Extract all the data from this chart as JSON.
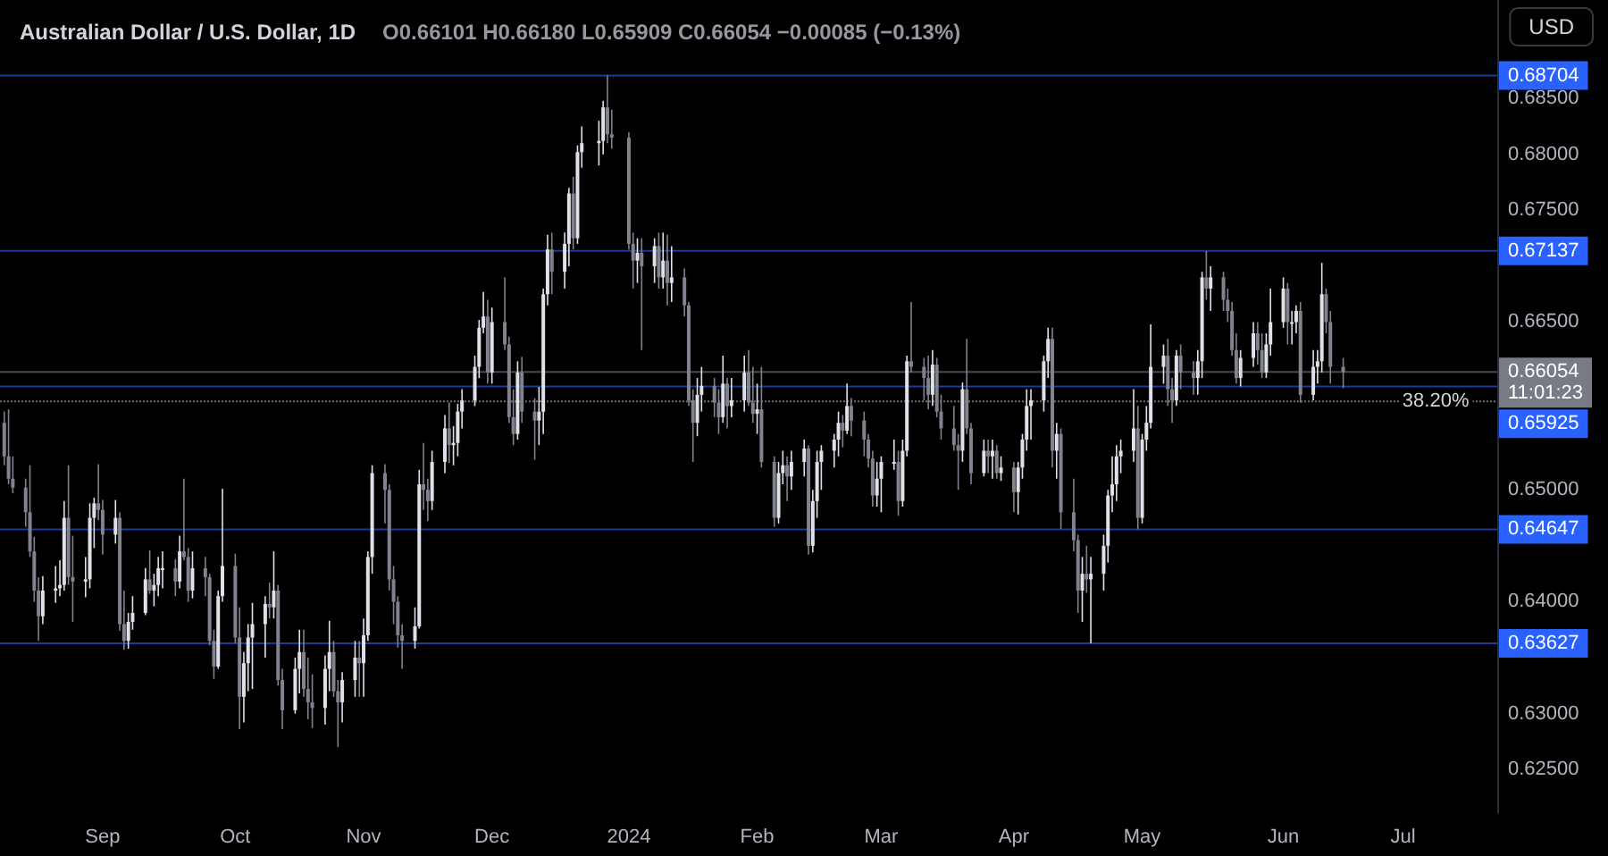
{
  "chart_data": {
    "type": "candlestick",
    "title": "Australian Dollar / U.S. Dollar, 1D",
    "subtitle": "O0.66101 H0.66180 L0.65909 C0.66054 −0.00085 (−0.13%)",
    "annotations": [
      "USD",
      {
        "text": "38.20%",
        "x": "2024-06-30",
        "y": 0.6579
      }
    ],
    "x": [
      "2023-08-09",
      "2023-08-10",
      "2023-08-11",
      "2023-08-14",
      "2023-08-15",
      "2023-08-16",
      "2023-08-17",
      "2023-08-18",
      "2023-08-21",
      "2023-08-22",
      "2023-08-23",
      "2023-08-24",
      "2023-08-25",
      "2023-08-28",
      "2023-08-29",
      "2023-08-30",
      "2023-08-31",
      "2023-09-01",
      "2023-09-04",
      "2023-09-05",
      "2023-09-06",
      "2023-09-07",
      "2023-09-08",
      "2023-09-11",
      "2023-09-12",
      "2023-09-13",
      "2023-09-14",
      "2023-09-15",
      "2023-09-18",
      "2023-09-19",
      "2023-09-20",
      "2023-09-21",
      "2023-09-22",
      "2023-09-25",
      "2023-09-26",
      "2023-09-27",
      "2023-09-28",
      "2023-09-29",
      "2023-10-02",
      "2023-10-03",
      "2023-10-04",
      "2023-10-05",
      "2023-10-06",
      "2023-10-09",
      "2023-10-10",
      "2023-10-11",
      "2023-10-12",
      "2023-10-13",
      "2023-10-16",
      "2023-10-17",
      "2023-10-18",
      "2023-10-19",
      "2023-10-20",
      "2023-10-23",
      "2023-10-24",
      "2023-10-25",
      "2023-10-26",
      "2023-10-27",
      "2023-10-30",
      "2023-10-31",
      "2023-11-01",
      "2023-11-02",
      "2023-11-03",
      "2023-11-06",
      "2023-11-07",
      "2023-11-08",
      "2023-11-09",
      "2023-11-10",
      "2023-11-13",
      "2023-11-14",
      "2023-11-15",
      "2023-11-16",
      "2023-11-17",
      "2023-11-20",
      "2023-11-21",
      "2023-11-22",
      "2023-11-23",
      "2023-11-24",
      "2023-11-27",
      "2023-11-28",
      "2023-11-29",
      "2023-11-30",
      "2023-12-01",
      "2023-12-04",
      "2023-12-05",
      "2023-12-06",
      "2023-12-07",
      "2023-12-08",
      "2023-12-11",
      "2023-12-12",
      "2023-12-13",
      "2023-12-14",
      "2023-12-15",
      "2023-12-18",
      "2023-12-19",
      "2023-12-20",
      "2023-12-21",
      "2023-12-22",
      "2023-12-26",
      "2023-12-27",
      "2023-12-28",
      "2023-12-29",
      "2024-01-02",
      "2024-01-03",
      "2024-01-04",
      "2024-01-05",
      "2024-01-08",
      "2024-01-09",
      "2024-01-10",
      "2024-01-11",
      "2024-01-12",
      "2024-01-15",
      "2024-01-16",
      "2024-01-17",
      "2024-01-18",
      "2024-01-19",
      "2024-01-22",
      "2024-01-23",
      "2024-01-24",
      "2024-01-25",
      "2024-01-26",
      "2024-01-29",
      "2024-01-30",
      "2024-01-31",
      "2024-02-01",
      "2024-02-02",
      "2024-02-05",
      "2024-02-06",
      "2024-02-07",
      "2024-02-08",
      "2024-02-09",
      "2024-02-12",
      "2024-02-13",
      "2024-02-14",
      "2024-02-15",
      "2024-02-16",
      "2024-02-19",
      "2024-02-20",
      "2024-02-21",
      "2024-02-22",
      "2024-02-23",
      "2024-02-26",
      "2024-02-27",
      "2024-02-28",
      "2024-02-29",
      "2024-03-01",
      "2024-03-04",
      "2024-03-05",
      "2024-03-06",
      "2024-03-07",
      "2024-03-08",
      "2024-03-11",
      "2024-03-12",
      "2024-03-13",
      "2024-03-14",
      "2024-03-15",
      "2024-03-18",
      "2024-03-19",
      "2024-03-20",
      "2024-03-21",
      "2024-03-22",
      "2024-03-25",
      "2024-03-26",
      "2024-03-27",
      "2024-03-28",
      "2024-03-29",
      "2024-04-01",
      "2024-04-02",
      "2024-04-03",
      "2024-04-04",
      "2024-04-05",
      "2024-04-08",
      "2024-04-09",
      "2024-04-10",
      "2024-04-11",
      "2024-04-12",
      "2024-04-15",
      "2024-04-16",
      "2024-04-17",
      "2024-04-18",
      "2024-04-19",
      "2024-04-22",
      "2024-04-23",
      "2024-04-24",
      "2024-04-25",
      "2024-04-26",
      "2024-04-29",
      "2024-04-30",
      "2024-05-01",
      "2024-05-02",
      "2024-05-03",
      "2024-05-06",
      "2024-05-07",
      "2024-05-08",
      "2024-05-09",
      "2024-05-10",
      "2024-05-13",
      "2024-05-14",
      "2024-05-15",
      "2024-05-16",
      "2024-05-17",
      "2024-05-20",
      "2024-05-21",
      "2024-05-22",
      "2024-05-23",
      "2024-05-24",
      "2024-05-27",
      "2024-05-28",
      "2024-05-29",
      "2024-05-30",
      "2024-05-31",
      "2024-06-03",
      "2024-06-04",
      "2024-06-05",
      "2024-06-06",
      "2024-06-07",
      "2024-06-10",
      "2024-06-11",
      "2024-06-12",
      "2024-06-13",
      "2024-06-14",
      "2024-06-17"
    ],
    "ohlc": [
      [
        0.656,
        0.657,
        0.6522,
        0.653
      ],
      [
        0.653,
        0.6572,
        0.6505,
        0.651
      ],
      [
        0.651,
        0.653,
        0.6497,
        0.6502
      ],
      [
        0.6502,
        0.651,
        0.6467,
        0.648
      ],
      [
        0.648,
        0.6522,
        0.644,
        0.6445
      ],
      [
        0.6445,
        0.6458,
        0.64,
        0.641
      ],
      [
        0.641,
        0.6422,
        0.6365,
        0.6387
      ],
      [
        0.6387,
        0.6423,
        0.638,
        0.641
      ],
      [
        0.641,
        0.6432,
        0.6399,
        0.6412
      ],
      [
        0.6412,
        0.6437,
        0.6405,
        0.6415
      ],
      [
        0.6415,
        0.649,
        0.641,
        0.6475
      ],
      [
        0.6475,
        0.6522,
        0.6415,
        0.6422
      ],
      [
        0.6422,
        0.6459,
        0.6382,
        0.6418
      ],
      [
        0.6418,
        0.644,
        0.6404,
        0.642
      ],
      [
        0.642,
        0.6488,
        0.6412,
        0.6475
      ],
      [
        0.6475,
        0.6493,
        0.6448,
        0.6488
      ],
      [
        0.6488,
        0.6523,
        0.6473,
        0.6482
      ],
      [
        0.6482,
        0.6491,
        0.6442,
        0.646
      ],
      [
        0.646,
        0.6491,
        0.6452,
        0.6475
      ],
      [
        0.6475,
        0.648,
        0.6374,
        0.638
      ],
      [
        0.638,
        0.641,
        0.6357,
        0.6365
      ],
      [
        0.6365,
        0.639,
        0.6358,
        0.6382
      ],
      [
        0.6382,
        0.6405,
        0.6375,
        0.639
      ],
      [
        0.639,
        0.643,
        0.6388,
        0.642
      ],
      [
        0.642,
        0.6446,
        0.6407,
        0.641
      ],
      [
        0.641,
        0.6425,
        0.6396,
        0.6415
      ],
      [
        0.6415,
        0.644,
        0.6405,
        0.643
      ],
      [
        0.643,
        0.6445,
        0.6412,
        0.643
      ],
      [
        0.643,
        0.6438,
        0.6405,
        0.6418
      ],
      [
        0.6418,
        0.6459,
        0.6412,
        0.6445
      ],
      [
        0.6445,
        0.651,
        0.6437,
        0.644
      ],
      [
        0.644,
        0.6448,
        0.64,
        0.641
      ],
      [
        0.641,
        0.6445,
        0.6403,
        0.643
      ],
      [
        0.643,
        0.644,
        0.6405,
        0.6422
      ],
      [
        0.6422,
        0.6425,
        0.6361,
        0.6365
      ],
      [
        0.6365,
        0.6375,
        0.6331,
        0.6342
      ],
      [
        0.6342,
        0.641,
        0.634,
        0.6405
      ],
      [
        0.6405,
        0.6501,
        0.64,
        0.6432
      ],
      [
        0.6432,
        0.6443,
        0.6363,
        0.6368
      ],
      [
        0.6368,
        0.6395,
        0.6286,
        0.6315
      ],
      [
        0.6315,
        0.6355,
        0.6292,
        0.6345
      ],
      [
        0.6345,
        0.638,
        0.632,
        0.6368
      ],
      [
        0.6368,
        0.6399,
        0.6322,
        0.638
      ],
      [
        0.638,
        0.6405,
        0.635,
        0.6398
      ],
      [
        0.6398,
        0.6417,
        0.6385,
        0.6395
      ],
      [
        0.6395,
        0.6445,
        0.6385,
        0.641
      ],
      [
        0.641,
        0.6415,
        0.6325,
        0.633
      ],
      [
        0.633,
        0.634,
        0.6286,
        0.6303
      ],
      [
        0.6303,
        0.635,
        0.63,
        0.634
      ],
      [
        0.634,
        0.6375,
        0.6318,
        0.6355
      ],
      [
        0.6355,
        0.6375,
        0.6315,
        0.6322
      ],
      [
        0.6322,
        0.635,
        0.6295,
        0.631
      ],
      [
        0.631,
        0.6335,
        0.6287,
        0.6305
      ],
      [
        0.6305,
        0.6352,
        0.629,
        0.634
      ],
      [
        0.634,
        0.6383,
        0.632,
        0.6355
      ],
      [
        0.6355,
        0.6365,
        0.6315,
        0.632
      ],
      [
        0.632,
        0.633,
        0.627,
        0.631
      ],
      [
        0.631,
        0.6337,
        0.6292,
        0.633
      ],
      [
        0.633,
        0.6365,
        0.6315,
        0.635
      ],
      [
        0.635,
        0.6365,
        0.6315,
        0.6345
      ],
      [
        0.6345,
        0.6385,
        0.6315,
        0.637
      ],
      [
        0.637,
        0.6445,
        0.6365,
        0.644
      ],
      [
        0.644,
        0.6522,
        0.6425,
        0.6515
      ],
      [
        0.6515,
        0.6523,
        0.647,
        0.65
      ],
      [
        0.65,
        0.6505,
        0.641,
        0.642
      ],
      [
        0.642,
        0.6432,
        0.638,
        0.64
      ],
      [
        0.64,
        0.6405,
        0.6359,
        0.637
      ],
      [
        0.637,
        0.638,
        0.634,
        0.6365
      ],
      [
        0.6365,
        0.6395,
        0.6358,
        0.6378
      ],
      [
        0.6378,
        0.6518,
        0.6376,
        0.6505
      ],
      [
        0.6505,
        0.6542,
        0.6482,
        0.65
      ],
      [
        0.65,
        0.651,
        0.6472,
        0.649
      ],
      [
        0.649,
        0.6535,
        0.6482,
        0.6525
      ],
      [
        0.6525,
        0.6567,
        0.6515,
        0.6555
      ],
      [
        0.6555,
        0.6578,
        0.6524,
        0.654
      ],
      [
        0.654,
        0.6557,
        0.6522,
        0.6542
      ],
      [
        0.6542,
        0.6577,
        0.653,
        0.657
      ],
      [
        0.657,
        0.659,
        0.6555,
        0.658
      ],
      [
        0.658,
        0.662,
        0.6575,
        0.661
      ],
      [
        0.661,
        0.6652,
        0.66,
        0.6645
      ],
      [
        0.6645,
        0.6677,
        0.664,
        0.6655
      ],
      [
        0.6655,
        0.667,
        0.6595,
        0.6605
      ],
      [
        0.6605,
        0.6663,
        0.6595,
        0.665
      ],
      [
        0.665,
        0.669,
        0.6625,
        0.663
      ],
      [
        0.663,
        0.6637,
        0.656,
        0.6565
      ],
      [
        0.6565,
        0.659,
        0.654,
        0.655
      ],
      [
        0.655,
        0.6615,
        0.6545,
        0.6605
      ],
      [
        0.6605,
        0.6619,
        0.656,
        0.657
      ],
      [
        0.657,
        0.6582,
        0.6527,
        0.6562
      ],
      [
        0.6562,
        0.6592,
        0.654,
        0.657
      ],
      [
        0.657,
        0.668,
        0.655,
        0.6675
      ],
      [
        0.6675,
        0.6728,
        0.6665,
        0.6715
      ],
      [
        0.6715,
        0.673,
        0.6675,
        0.6695
      ],
      [
        0.6695,
        0.673,
        0.668,
        0.672
      ],
      [
        0.672,
        0.677,
        0.67,
        0.6765
      ],
      [
        0.6765,
        0.678,
        0.6715,
        0.6725
      ],
      [
        0.6725,
        0.6808,
        0.672,
        0.6802
      ],
      [
        0.6802,
        0.6825,
        0.6788,
        0.681
      ],
      [
        0.681,
        0.683,
        0.679,
        0.6812
      ],
      [
        0.6812,
        0.6848,
        0.68,
        0.6842
      ],
      [
        0.6842,
        0.68704,
        0.681,
        0.6818
      ],
      [
        0.6818,
        0.684,
        0.6805,
        0.6815
      ],
      [
        0.6815,
        0.682,
        0.6715,
        0.672
      ],
      [
        0.672,
        0.673,
        0.668,
        0.6705
      ],
      [
        0.6705,
        0.6725,
        0.6685,
        0.6712
      ],
      [
        0.6712,
        0.6725,
        0.6625,
        0.67
      ],
      [
        0.67,
        0.6725,
        0.6685,
        0.6718
      ],
      [
        0.6718,
        0.673,
        0.668,
        0.669
      ],
      [
        0.669,
        0.673,
        0.668,
        0.6705
      ],
      [
        0.6705,
        0.6728,
        0.6665,
        0.6685
      ],
      [
        0.6685,
        0.6718,
        0.6668,
        0.669
      ],
      [
        0.669,
        0.6698,
        0.6655,
        0.6665
      ],
      [
        0.6665,
        0.6668,
        0.6575,
        0.658
      ],
      [
        0.658,
        0.659,
        0.6525,
        0.656
      ],
      [
        0.656,
        0.66,
        0.6548,
        0.6585
      ],
      [
        0.6585,
        0.661,
        0.657,
        0.6593
      ],
      [
        0.6593,
        0.66,
        0.6565,
        0.6578
      ],
      [
        0.6578,
        0.659,
        0.655,
        0.6565
      ],
      [
        0.6565,
        0.662,
        0.656,
        0.6595
      ],
      [
        0.6595,
        0.66,
        0.6555,
        0.6575
      ],
      [
        0.6575,
        0.66,
        0.6565,
        0.658
      ],
      [
        0.658,
        0.662,
        0.657,
        0.6605
      ],
      [
        0.6605,
        0.6625,
        0.6575,
        0.6578
      ],
      [
        0.6578,
        0.661,
        0.656,
        0.6568
      ],
      [
        0.6568,
        0.6595,
        0.655,
        0.6572
      ],
      [
        0.6572,
        0.661,
        0.652,
        0.6525
      ],
      [
        0.6525,
        0.653,
        0.6467,
        0.6475
      ],
      [
        0.6475,
        0.6525,
        0.647,
        0.6515
      ],
      [
        0.6515,
        0.6535,
        0.6505,
        0.6522
      ],
      [
        0.6522,
        0.653,
        0.649,
        0.6512
      ],
      [
        0.6512,
        0.6535,
        0.65,
        0.6525
      ],
      [
        0.6525,
        0.6545,
        0.6512,
        0.6537
      ],
      [
        0.6537,
        0.654,
        0.6442,
        0.645
      ],
      [
        0.645,
        0.65,
        0.6444,
        0.649
      ],
      [
        0.649,
        0.6535,
        0.6475,
        0.6525
      ],
      [
        0.6525,
        0.654,
        0.65,
        0.6535
      ],
      [
        0.6535,
        0.655,
        0.652,
        0.6545
      ],
      [
        0.6545,
        0.657,
        0.653,
        0.656
      ],
      [
        0.656,
        0.6567,
        0.6538,
        0.6553
      ],
      [
        0.6553,
        0.6595,
        0.655,
        0.6575
      ],
      [
        0.6575,
        0.6582,
        0.6548,
        0.6562
      ],
      [
        0.6562,
        0.657,
        0.653,
        0.6545
      ],
      [
        0.6545,
        0.655,
        0.652,
        0.6528
      ],
      [
        0.6528,
        0.6535,
        0.6485,
        0.6495
      ],
      [
        0.6495,
        0.6525,
        0.6485,
        0.651
      ],
      [
        0.651,
        0.653,
        0.648,
        0.6525
      ],
      [
        0.6525,
        0.6545,
        0.6518,
        0.6525
      ],
      [
        0.6525,
        0.6535,
        0.6477,
        0.649
      ],
      [
        0.649,
        0.6545,
        0.6485,
        0.6535
      ],
      [
        0.6535,
        0.662,
        0.653,
        0.6615
      ],
      [
        0.6615,
        0.6668,
        0.6605,
        0.661
      ],
      [
        0.661,
        0.6618,
        0.658,
        0.66
      ],
      [
        0.66,
        0.662,
        0.6572,
        0.6585
      ],
      [
        0.6585,
        0.6625,
        0.6575,
        0.6612
      ],
      [
        0.6612,
        0.6618,
        0.6565,
        0.657
      ],
      [
        0.657,
        0.6585,
        0.6545,
        0.6555
      ],
      [
        0.6555,
        0.6575,
        0.6535,
        0.654
      ],
      [
        0.654,
        0.655,
        0.65,
        0.6535
      ],
      [
        0.6535,
        0.6596,
        0.6525,
        0.659
      ],
      [
        0.659,
        0.6635,
        0.655,
        0.6555
      ],
      [
        0.6555,
        0.656,
        0.6505,
        0.6515
      ],
      [
        0.6515,
        0.6545,
        0.6512,
        0.6535
      ],
      [
        0.6535,
        0.6545,
        0.6515,
        0.653
      ],
      [
        0.653,
        0.6545,
        0.651,
        0.6535
      ],
      [
        0.6535,
        0.654,
        0.651,
        0.6515
      ],
      [
        0.6515,
        0.653,
        0.6508,
        0.652
      ],
      [
        0.652,
        0.6525,
        0.648,
        0.6498
      ],
      [
        0.6498,
        0.6525,
        0.6478,
        0.652
      ],
      [
        0.652,
        0.655,
        0.651,
        0.6545
      ],
      [
        0.6545,
        0.659,
        0.6535,
        0.6575
      ],
      [
        0.6575,
        0.659,
        0.6545,
        0.658
      ],
      [
        0.658,
        0.662,
        0.657,
        0.6615
      ],
      [
        0.6615,
        0.6645,
        0.66,
        0.6635
      ],
      [
        0.6635,
        0.6645,
        0.652,
        0.6535
      ],
      [
        0.6535,
        0.656,
        0.651,
        0.655
      ],
      [
        0.655,
        0.6555,
        0.6465,
        0.648
      ],
      [
        0.648,
        0.651,
        0.6445,
        0.6455
      ],
      [
        0.6455,
        0.646,
        0.639,
        0.641
      ],
      [
        0.641,
        0.644,
        0.6382,
        0.6425
      ],
      [
        0.6425,
        0.645,
        0.6408,
        0.642
      ],
      [
        0.642,
        0.644,
        0.63627,
        0.6425
      ],
      [
        0.6425,
        0.646,
        0.641,
        0.645
      ],
      [
        0.645,
        0.65,
        0.6435,
        0.6495
      ],
      [
        0.6495,
        0.653,
        0.648,
        0.6505
      ],
      [
        0.6505,
        0.654,
        0.649,
        0.653
      ],
      [
        0.653,
        0.6545,
        0.6515,
        0.6535
      ],
      [
        0.6535,
        0.659,
        0.6525,
        0.6555
      ],
      [
        0.6555,
        0.6575,
        0.64647,
        0.6475
      ],
      [
        0.6475,
        0.655,
        0.647,
        0.6545
      ],
      [
        0.6545,
        0.6575,
        0.6535,
        0.656
      ],
      [
        0.656,
        0.6648,
        0.6555,
        0.661
      ],
      [
        0.661,
        0.663,
        0.6595,
        0.662
      ],
      [
        0.662,
        0.6635,
        0.6575,
        0.659
      ],
      [
        0.659,
        0.66,
        0.656,
        0.658
      ],
      [
        0.658,
        0.6625,
        0.6575,
        0.662
      ],
      [
        0.662,
        0.663,
        0.659,
        0.6605
      ],
      [
        0.6605,
        0.6615,
        0.6585,
        0.66
      ],
      [
        0.66,
        0.6625,
        0.6585,
        0.6615
      ],
      [
        0.6615,
        0.6695,
        0.66,
        0.669
      ],
      [
        0.669,
        0.67137,
        0.667,
        0.668
      ],
      [
        0.668,
        0.67,
        0.666,
        0.669
      ],
      [
        0.669,
        0.6695,
        0.666,
        0.667
      ],
      [
        0.667,
        0.668,
        0.665,
        0.666
      ],
      [
        0.666,
        0.6668,
        0.662,
        0.6625
      ],
      [
        0.6625,
        0.664,
        0.6595,
        0.66
      ],
      [
        0.66,
        0.6625,
        0.65925,
        0.6618
      ],
      [
        0.6618,
        0.665,
        0.661,
        0.664
      ],
      [
        0.664,
        0.665,
        0.6612,
        0.6625
      ],
      [
        0.6625,
        0.664,
        0.66,
        0.6605
      ],
      [
        0.6605,
        0.664,
        0.66,
        0.663
      ],
      [
        0.663,
        0.668,
        0.662,
        0.665
      ],
      [
        0.665,
        0.669,
        0.6645,
        0.668
      ],
      [
        0.668,
        0.6685,
        0.663,
        0.665
      ],
      [
        0.665,
        0.666,
        0.663,
        0.665
      ],
      [
        0.665,
        0.6665,
        0.664,
        0.666
      ],
      [
        0.666,
        0.6668,
        0.6578,
        0.6585
      ],
      [
        0.6585,
        0.6625,
        0.658,
        0.661
      ],
      [
        0.661,
        0.6625,
        0.6595,
        0.6615
      ],
      [
        0.6615,
        0.6703,
        0.6605,
        0.6675
      ],
      [
        0.6675,
        0.668,
        0.664,
        0.665
      ],
      [
        0.665,
        0.666,
        0.6595,
        0.661
      ],
      [
        0.66101,
        0.6618,
        0.65909,
        0.66054
      ]
    ],
    "xlim": [
      "2023-08-08",
      "2024-07-23"
    ],
    "xticks": [
      {
        "value": "2023-09-01",
        "label": "Sep"
      },
      {
        "value": "2023-10-02",
        "label": "Oct"
      },
      {
        "value": "2023-11-01",
        "label": "Nov"
      },
      {
        "value": "2023-12-01",
        "label": "Dec"
      },
      {
        "value": "2024-01-02",
        "label": "2024"
      },
      {
        "value": "2024-02-01",
        "label": "Feb"
      },
      {
        "value": "2024-03-01",
        "label": "Mar"
      },
      {
        "value": "2024-04-01",
        "label": "Apr"
      },
      {
        "value": "2024-05-01",
        "label": "May"
      },
      {
        "value": "2024-06-03",
        "label": "Jun"
      },
      {
        "value": "2024-07-01",
        "label": "Jul"
      }
    ],
    "ylim": [
      0.6211,
      0.6938
    ],
    "yticks": [
      {
        "value": 0.625,
        "label": "0.62500"
      },
      {
        "value": 0.63,
        "label": "0.63000"
      },
      {
        "value": 0.64,
        "label": "0.64000"
      },
      {
        "value": 0.65,
        "label": "0.65000"
      },
      {
        "value": 0.665,
        "label": "0.66500"
      },
      {
        "value": 0.675,
        "label": "0.67500"
      },
      {
        "value": 0.68,
        "label": "0.68000"
      },
      {
        "value": 0.685,
        "label": "0.68500"
      }
    ],
    "ref_lines": [
      {
        "axis": "y",
        "value": 0.68704,
        "label": "0.68704",
        "color": "#2962ff",
        "line_style": "solid"
      },
      {
        "axis": "y",
        "value": 0.67137,
        "label": "0.67137",
        "color": "#2962ff",
        "line_style": "solid"
      },
      {
        "axis": "y",
        "value": 0.66054,
        "label": "0.66054\n11:01:23",
        "color": "#787b86",
        "line_style": "solid"
      },
      {
        "axis": "y",
        "value": 0.65925,
        "label": "0.65925",
        "color": "#2962ff",
        "line_style": "solid"
      },
      {
        "axis": "y",
        "value": 0.6579,
        "color": "#787b86",
        "line_style": "dotted"
      },
      {
        "axis": "y",
        "value": 0.64647,
        "label": "0.64647",
        "color": "#2962ff",
        "line_style": "solid"
      },
      {
        "axis": "y",
        "value": 0.63627,
        "label": "0.63627",
        "color": "#2962ff",
        "line_style": "solid"
      }
    ]
  }
}
